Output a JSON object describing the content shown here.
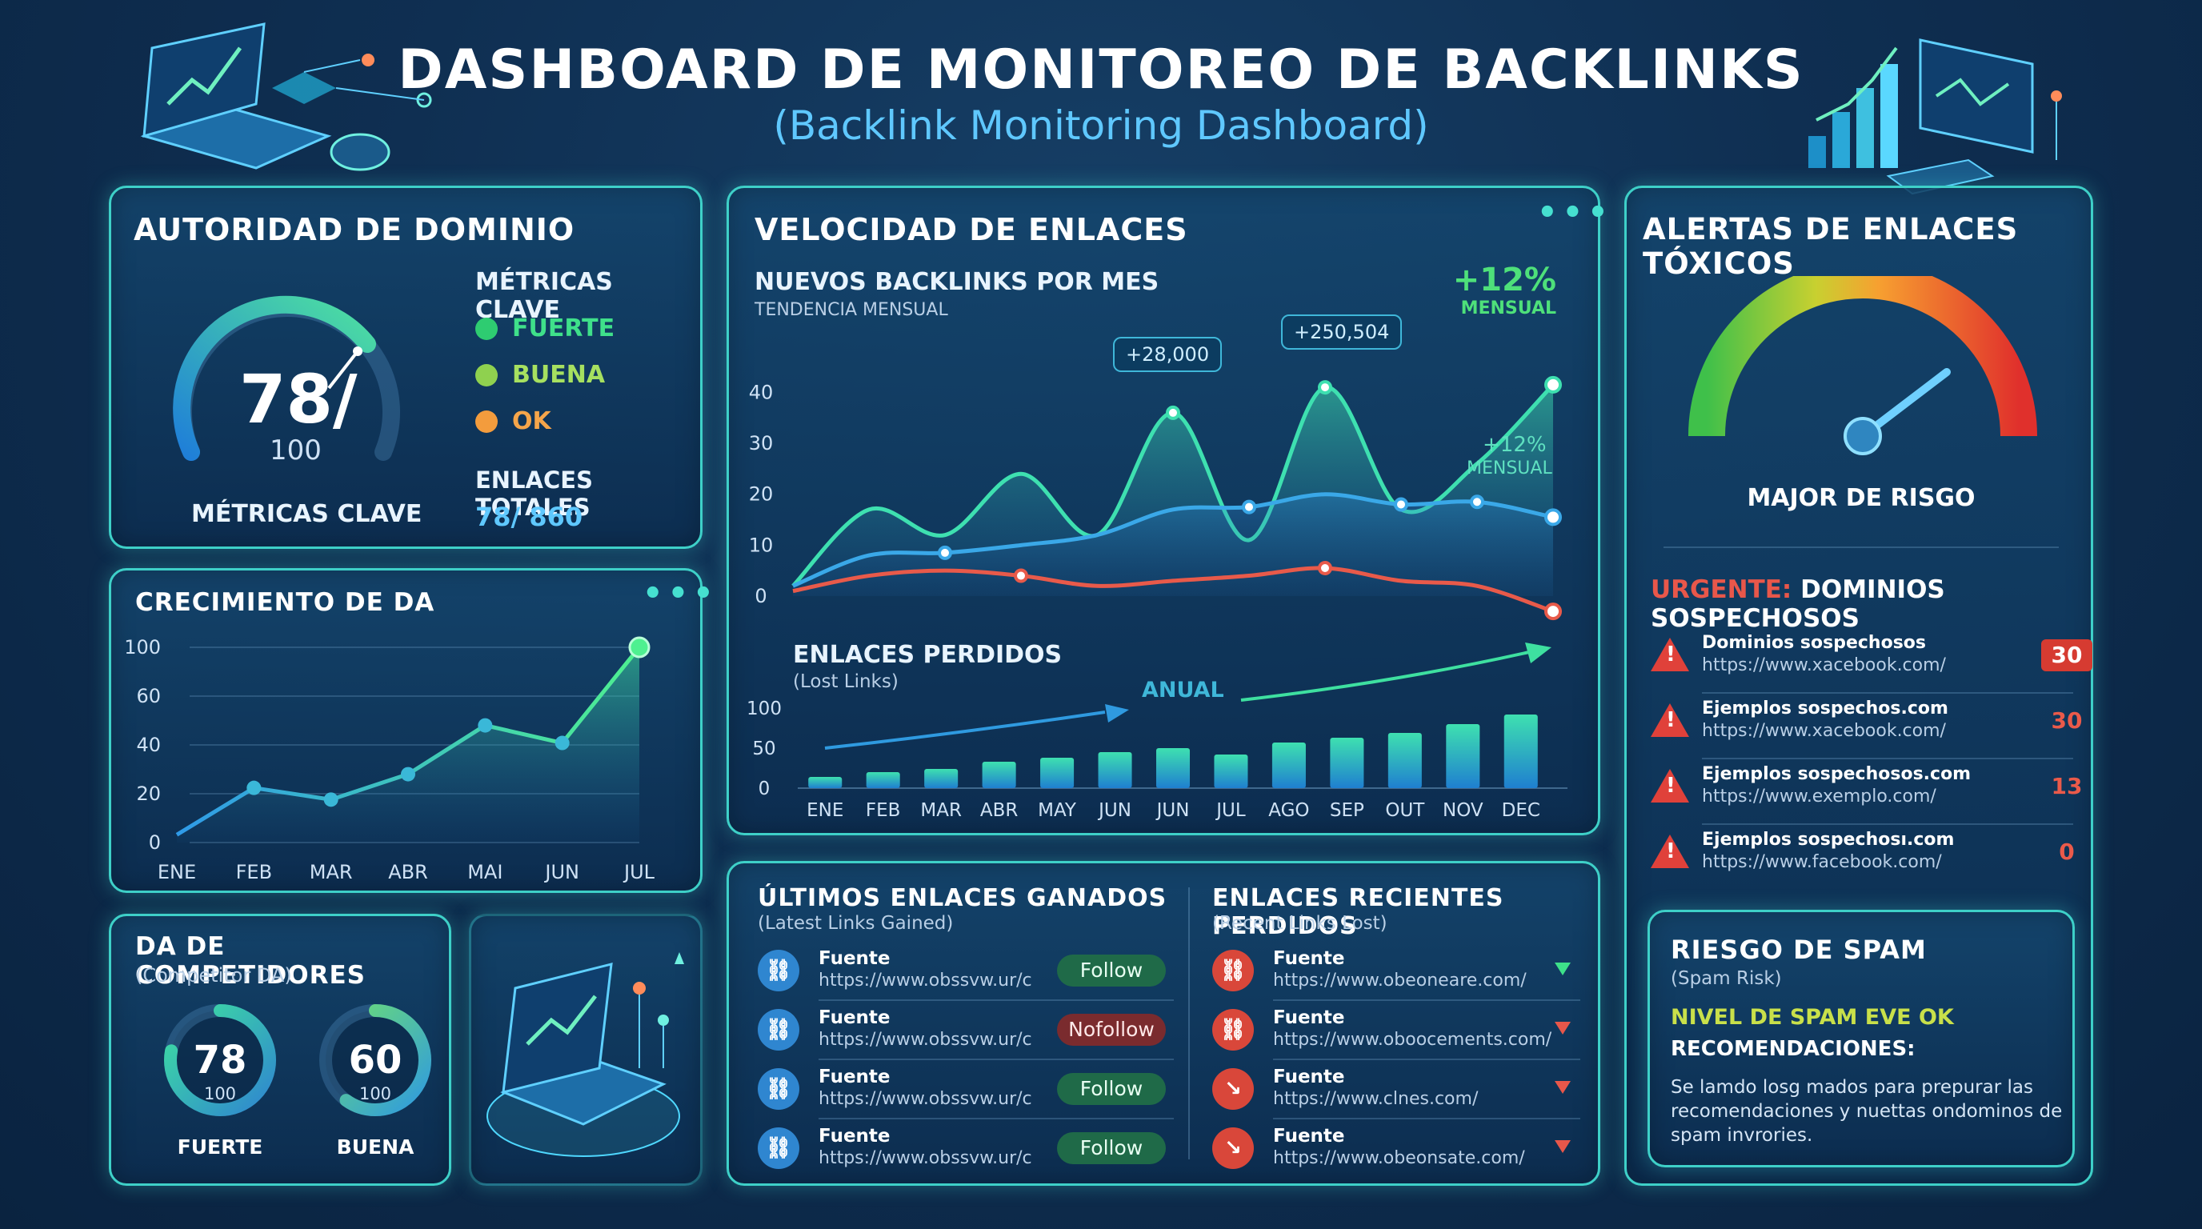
{
  "header": {
    "title": "DASHBOARD DE MONITOREO DE BACKLINKS",
    "subtitle": "(Backlink Monitoring Dashboard)"
  },
  "authority": {
    "title": "AUTORIDAD DE DOMINIO",
    "score": "78/",
    "max": "100",
    "score_value": 78,
    "gauge_caption": "MÉTRICAS CLAVE",
    "metrics_title": "MÉTRICAS CLAVE",
    "legend": [
      {
        "label": "FUERTE",
        "color": "#2ecc71"
      },
      {
        "label": "BUENA",
        "color": "#8fd14f"
      },
      {
        "label": "OK",
        "color": "#f39c3d"
      }
    ],
    "total_label": "ENLACES TOTALES",
    "total_value": "78/ 860"
  },
  "da_growth": {
    "title": "CRECIMIENTO DE DA",
    "chart_data": {
      "type": "area",
      "categories": [
        "ENE",
        "FEB",
        "MAR",
        "ABR",
        "MAI",
        "JUN",
        "JUL"
      ],
      "values": [
        4,
        28,
        22,
        35,
        60,
        51,
        100
      ],
      "yticks": [
        "100",
        "60",
        "40",
        "20",
        "0"
      ],
      "ylim": [
        0,
        100
      ]
    }
  },
  "velocity": {
    "title": "VELOCIDAD DE ENLACES",
    "section_title": "NUEVOS BACKLINKS POR MES",
    "section_sub": "TENDENCIA MENSUAL",
    "growth": "+12%",
    "growth_label": "MENSUAL",
    "growth2": "+12%",
    "growth2_label": "MENSUAL",
    "annotations": [
      "+28,000",
      "+250,504"
    ],
    "chart_data": {
      "type": "line",
      "yticks": [
        "40",
        "30",
        "20",
        "10",
        "0"
      ],
      "ylim": [
        0,
        45
      ],
      "series": [
        {
          "values": [
            2,
            17,
            12,
            24,
            12,
            36,
            11,
            41,
            17,
            26,
            41.5
          ],
          "color": "#3ee0b0"
        },
        {
          "values": [
            2,
            8,
            8.5,
            10,
            12,
            17,
            17.5,
            20,
            18,
            18.5,
            15.5
          ],
          "color": "#3aa8e8"
        },
        {
          "values": [
            1,
            4,
            5,
            4,
            2,
            3,
            4,
            5.5,
            3,
            2,
            -5
          ],
          "color": "#e85a4a"
        }
      ]
    },
    "lost_title": "ENLACES PERDIDOS",
    "lost_sub": "(Lost Links)",
    "annual_label": "ANUAL",
    "bar_data": {
      "type": "bar",
      "categories": [
        "ENE",
        "FEB",
        "MAR",
        "ABR",
        "MAY",
        "JUN",
        "JUN",
        "JUL",
        "AGO",
        "SEP",
        "OUT",
        "NOV",
        "DEC"
      ],
      "values": [
        14,
        20,
        24,
        33,
        38,
        45,
        50,
        42,
        57,
        63,
        69,
        80,
        92
      ],
      "yticks": [
        "100",
        "50",
        "0"
      ],
      "ylim": [
        0,
        110
      ]
    }
  },
  "toxic": {
    "title": "ALERTAS DE ENLACES TÓXICOS",
    "gauge_caption": "MAJOR DE RISGO",
    "urgent_label": "URGENTE:",
    "urgent_text": "DOMINIOS SOSPECHOSOS",
    "items": [
      {
        "name": "Dominios sospechosos",
        "url": "https://www.xacebook.com/",
        "count": "30"
      },
      {
        "name": "Ejemplos sospechos.com",
        "url": "https://www.xacebook.com/",
        "count": "30"
      },
      {
        "name": "Ejemplos sospechosos.com",
        "url": "https://www.exemplo.com/",
        "count": "13"
      },
      {
        "name": "Ejemplos sospechosı.com",
        "url": "https://www.facebook.com/",
        "count": "0"
      }
    ],
    "spam": {
      "title": "RIESGO DE SPAM",
      "sub": "(Spam Risk)",
      "level": "NIVEL DE SPAM EVE OK",
      "rec_title": "RECOMENDACIONES:",
      "rec_text": "Se lamdo losg mados para prepurar las recomendaciones y nuettas ondominos de spam invrories."
    }
  },
  "competitors": {
    "title": "DA DE COMPETIDORES",
    "sub": "(Competitor DA)",
    "items": [
      {
        "value": "78",
        "max": "100",
        "label": "FUERTE",
        "percent": 0.78
      },
      {
        "value": "60",
        "max": "100",
        "label": "BUENA",
        "percent": 0.6
      }
    ]
  },
  "gained": {
    "title": "ÚLTIMOS ENLACES GANADOS",
    "sub": "(Latest Links Gained)",
    "items": [
      {
        "name": "Fuente",
        "url": "https://www.obssvw.ur/c",
        "tag": "Follow"
      },
      {
        "name": "Fuente",
        "url": "https://www.obssvw.ur/c",
        "tag": "Nofollow"
      },
      {
        "name": "Fuente",
        "url": "https://www.obssvw.ur/c",
        "tag": "Follow"
      },
      {
        "name": "Fuente",
        "url": "https://www.obssvw.ur/c",
        "tag": "Follow"
      }
    ]
  },
  "lost_recent": {
    "title": "ENLACES RECIENTES PERDIDOS",
    "sub": "(Recent Links Lost)",
    "items": [
      {
        "name": "Fuente",
        "url": "https://www.obeoneare.com/"
      },
      {
        "name": "Fuente",
        "url": "https://www.oboocements.com/"
      },
      {
        "name": "Fuente",
        "url": "https://www.clnes.com/"
      },
      {
        "name": "Fuente",
        "url": "https://www.obeonsate.com/"
      }
    ]
  }
}
